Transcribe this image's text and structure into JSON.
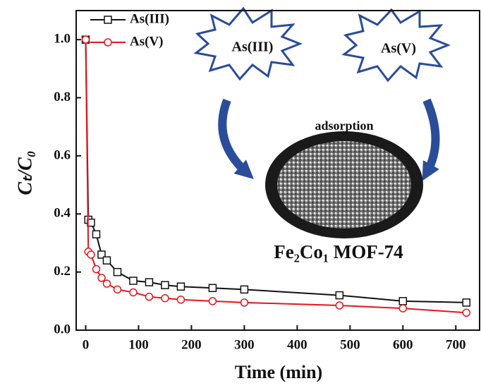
{
  "chart_data": {
    "type": "line",
    "x_label": "Time (min)",
    "y_label": "Cₜ/C₀",
    "x": [
      0,
      5,
      10,
      20,
      30,
      40,
      60,
      90,
      120,
      150,
      180,
      240,
      300,
      480,
      600,
      720
    ],
    "series": [
      {
        "name": "As(III)",
        "color": "#111111",
        "marker": "square",
        "values": [
          1.0,
          0.38,
          0.37,
          0.33,
          0.26,
          0.24,
          0.2,
          0.17,
          0.165,
          0.155,
          0.15,
          0.145,
          0.14,
          0.12,
          0.1,
          0.095
        ]
      },
      {
        "name": "As(V)",
        "color": "#e8141c",
        "marker": "circle",
        "values": [
          1.0,
          0.27,
          0.26,
          0.21,
          0.18,
          0.16,
          0.14,
          0.13,
          0.115,
          0.11,
          0.105,
          0.1,
          0.095,
          0.085,
          0.075,
          0.06
        ]
      }
    ],
    "xlim": [
      -18,
      745
    ],
    "xticks": [
      0,
      100,
      200,
      300,
      400,
      500,
      600,
      700
    ],
    "ylim": [
      0,
      1.1
    ],
    "yticks": [
      {
        "value": 0,
        "label": "0.0"
      },
      0.2,
      0.4,
      0.6,
      0.8,
      {
        "value": 1,
        "label": "1.0"
      }
    ],
    "legend": "upper left",
    "annotations": [
      "As(III)",
      "As(V)",
      "adsorption",
      "Fe₂Co₁ MOF-74"
    ]
  }
}
